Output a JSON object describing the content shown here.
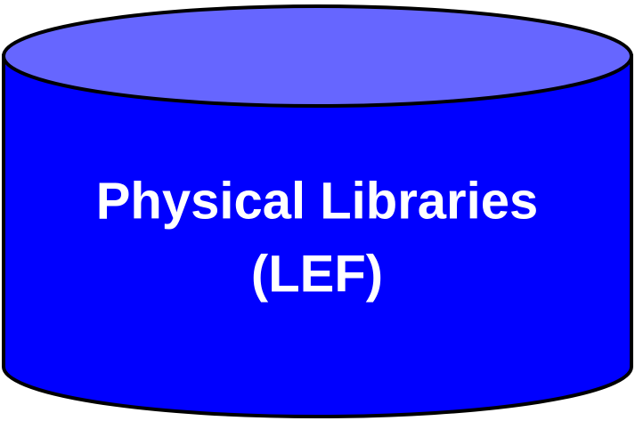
{
  "shape": {
    "label_lines": [
      "Physical Libraries",
      "(LEF)"
    ]
  }
}
